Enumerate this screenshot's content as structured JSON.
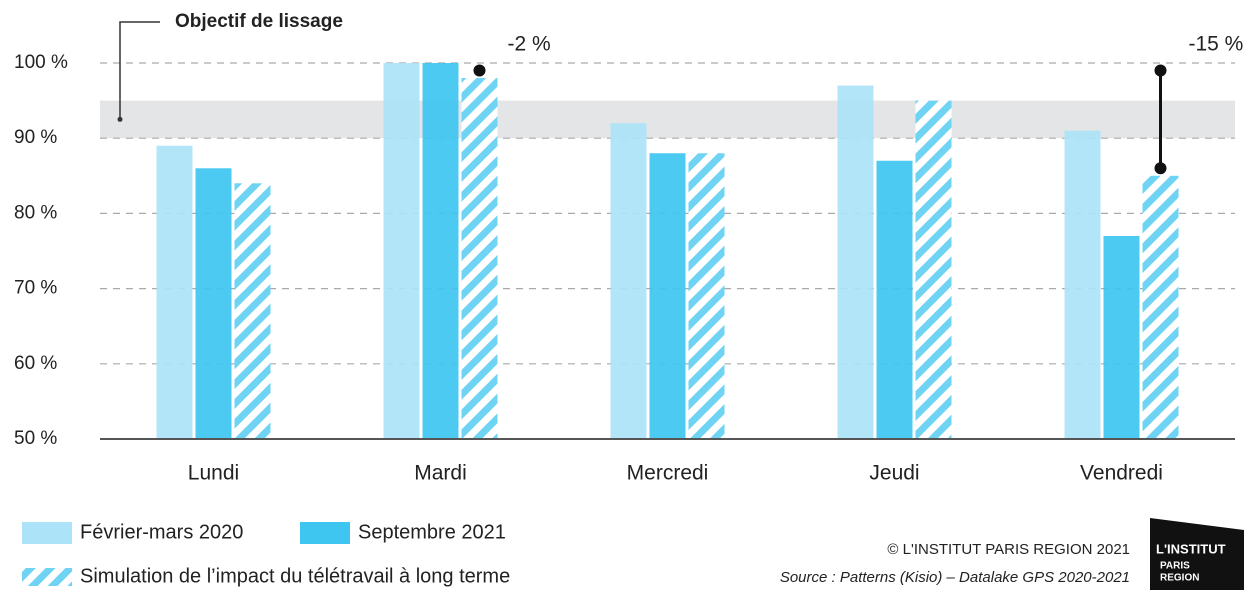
{
  "chart_data": {
    "type": "bar",
    "categories": [
      "Lundi",
      "Mardi",
      "Mercredi",
      "Jeudi",
      "Vendredi"
    ],
    "series": [
      {
        "name": "Février-mars 2020",
        "color": "#ade3f8",
        "values": [
          89,
          100,
          92,
          97,
          91
        ]
      },
      {
        "name": "Septembre 2021",
        "color": "#3ec6f0",
        "values": [
          86,
          100,
          88,
          87,
          77
        ]
      },
      {
        "name": "Simulation de l’impact du télétravail à long terme",
        "color": "#6fd3f4",
        "style": "hatched",
        "values": [
          84,
          98,
          88,
          95,
          85
        ]
      }
    ],
    "ylim": [
      50,
      105
    ],
    "yticks": [
      {
        "value": 50,
        "label": "50 %"
      },
      {
        "value": 60,
        "label": "60 %"
      },
      {
        "value": 70,
        "label": "70 %"
      },
      {
        "value": 80,
        "label": "80 %"
      },
      {
        "value": 90,
        "label": "90 %"
      },
      {
        "value": 100,
        "label": "100 %"
      }
    ],
    "grid": true,
    "target_band": {
      "label": "Objectif de lissage",
      "from": 90,
      "to": 95
    },
    "annotations": [
      {
        "label": "-2 %",
        "category": 1,
        "from": 99,
        "to": 99
      },
      {
        "label": "-15 %",
        "category": 4,
        "from": 99,
        "to": 86
      }
    ],
    "credit": "© L'INSTITUT PARIS REGION 2021",
    "source": "Source : Patterns (Kisio) – Datalake GPS 2020-2021",
    "logo": [
      "L'INSTITUT",
      "PARIS",
      "REGION"
    ]
  }
}
